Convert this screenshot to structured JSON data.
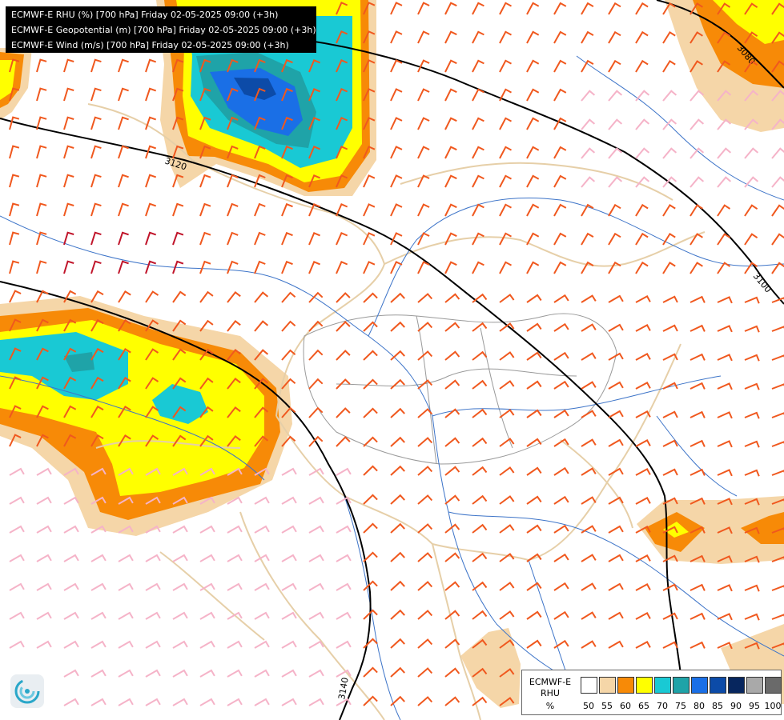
{
  "title_lines": [
    "ECMWF-E RHU (%) [700 hPa] Friday 02-05-2025 09:00 (+3h)",
    "ECMWF-E Geopotential (m) [700 hPa] Friday 02-05-2025 09:00 (+3h)",
    "ECMWF-E Wind (m/s) [700 hPa] Friday 02-05-2025 09:00 (+3h)"
  ],
  "legend": {
    "title_line1": "ECMWF-E",
    "title_line2": "RHU",
    "unit": "%",
    "ticks": [
      "50",
      "55",
      "60",
      "65",
      "70",
      "75",
      "80",
      "85",
      "90",
      "95",
      "100"
    ],
    "colors": [
      "#ffffff",
      "#f5d6a8",
      "#f78a07",
      "#ffff00",
      "#19c9d4",
      "#1fa3a8",
      "#1a6fe6",
      "#0c4ba8",
      "#07265e",
      "#a9a9a9",
      "#6a6a6a"
    ]
  },
  "contour_labels": [
    "3120",
    "3100",
    "3080",
    "3140"
  ],
  "map_colors": {
    "borders": "#e6cfa8",
    "rivers": "#3d74c8",
    "contours": "#000000",
    "wind_strong": "#f0581e",
    "wind_weak": "#f5b3c8",
    "wind_max": "#c0142a"
  },
  "logo_icon": "ecmwf-swirl-logo-icon"
}
